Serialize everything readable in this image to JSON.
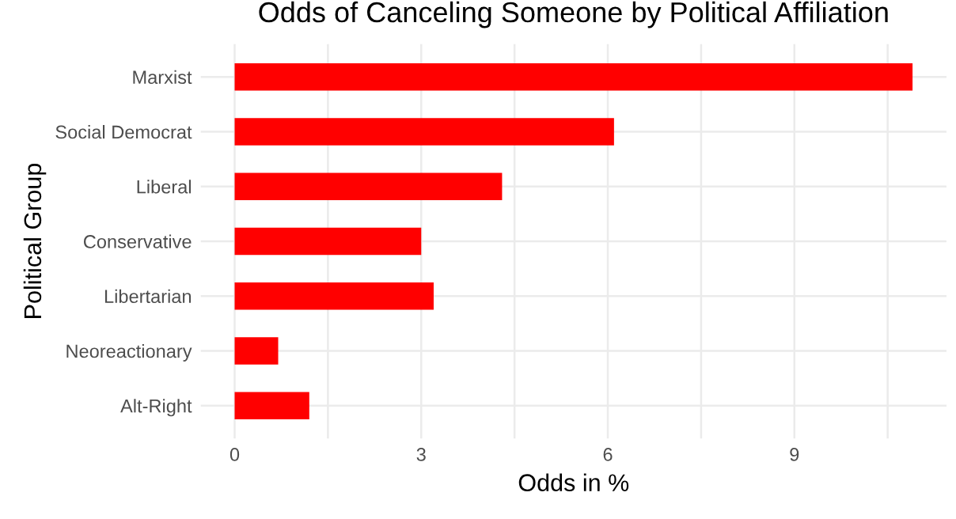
{
  "chart_data": {
    "type": "bar",
    "orientation": "horizontal",
    "title": "Odds of Canceling Someone by Political Affiliation",
    "xlabel": "Odds in %",
    "ylabel": "Political Group",
    "categories": [
      "Marxist",
      "Social Democrat",
      "Liberal",
      "Conservative",
      "Libertarian",
      "Neoreactionary",
      "Alt-Right"
    ],
    "values": [
      10.9,
      6.1,
      4.3,
      3.0,
      3.2,
      0.7,
      1.2
    ],
    "color": "#ff0000",
    "xlim": [
      -0.545,
      11.445
    ],
    "xticks": [
      0,
      {
        "value": 1.5,
        "label": null
      },
      3,
      {
        "value": 4.5,
        "label": null
      },
      6,
      {
        "value": 7.5,
        "label": null
      },
      9,
      {
        "value": 10.5,
        "label": null
      }
    ],
    "grid": true
  }
}
